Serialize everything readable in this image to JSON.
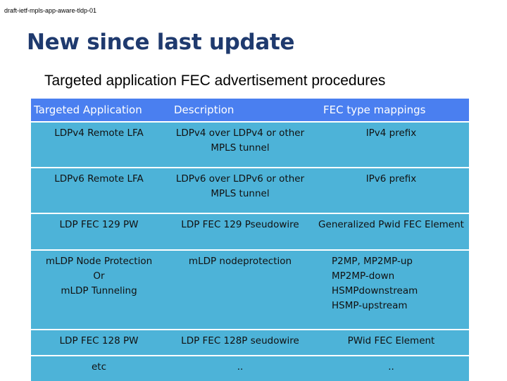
{
  "header": {
    "draft_name": "draft-ietf-mpls-app-aware-tldp-01"
  },
  "title": "New since last update",
  "subtitle": "Targeted application FEC advertisement procedures",
  "table": {
    "headers": [
      "Targeted Application",
      "Description",
      "FEC type mappings"
    ],
    "rows": [
      [
        "LDPv4 Remote LFA",
        "LDPv4 over LDPv4 or other MPLS tunnel",
        "IPv4 prefix"
      ],
      [
        "LDPv6 Remote LFA",
        "LDPv6 over LDPv6 or other MPLS tunnel",
        "IPv6 prefix"
      ],
      [
        "LDP FEC 129 PW",
        "LDP FEC 129 Pseudowire",
        "Generalized Pwid FEC  Element"
      ],
      [
        "mLDP Node Protection\nOr\nmLDP Tunneling",
        "mLDP nodeprotection",
        "P2MP, MP2MP-up\nMP2MP-down\nHSMPdownstream\nHSMP-upstream"
      ],
      [
        "LDP FEC 128 PW",
        "LDP FEC 128P seudowire",
        "PWid FEC Element"
      ],
      [
        "etc",
        "..",
        ".."
      ]
    ]
  },
  "colors": {
    "title": "#1f3a6e",
    "header_bg": "#4a7ff0",
    "cell_bg": "#4db3d8"
  }
}
